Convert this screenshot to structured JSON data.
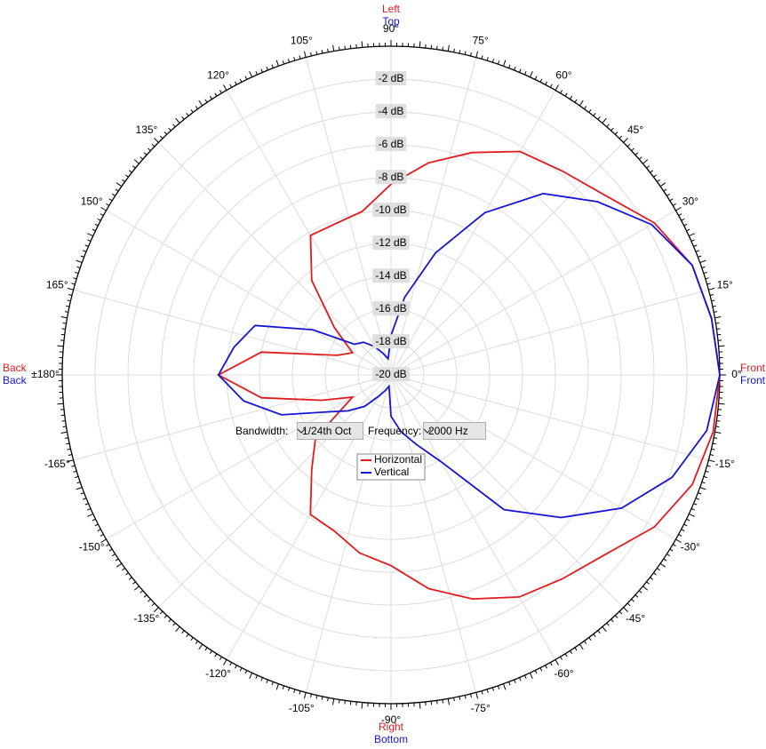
{
  "chart_data": {
    "type": "polar",
    "theta": [
      0,
      10,
      20,
      30,
      40,
      50,
      60,
      70,
      80,
      90,
      100,
      110,
      120,
      130,
      140,
      150,
      160,
      170,
      180,
      190,
      200,
      210,
      220,
      230,
      240,
      250,
      260,
      270,
      280,
      290,
      300,
      310,
      320,
      330,
      340,
      350
    ],
    "series": [
      {
        "name": "Horizontal",
        "color": "#e31a1c",
        "values": [
          0,
          -0.2,
          -0.5,
          -1.5,
          -3.0,
          -3.8,
          -4.3,
          -5.6,
          -6.9,
          -8.4,
          -9.9,
          -10.2,
          -10.2,
          -12.5,
          -15.5,
          -17.3,
          -16.5,
          -12,
          -9.5,
          -12,
          -15.5,
          -17.3,
          -14,
          -12.5,
          -10.2,
          -9.9,
          -9.0,
          -8.4,
          -6.8,
          -5.5,
          -4.4,
          -3.8,
          -3.0,
          -1.5,
          -0.5,
          -0.1
        ]
      },
      {
        "name": "Vertical",
        "color": "#1515d8",
        "values": [
          0,
          -0.2,
          -0.5,
          -1.7,
          -3.6,
          -5.6,
          -8.6,
          -12.1,
          -15.2,
          -17.6,
          -19,
          -18.6,
          -18,
          -17.4,
          -17.1,
          -14.5,
          -11.2,
          -10.3,
          -9.5,
          -10.9,
          -12.9,
          -15.5,
          -16.6,
          -17.5,
          -18.5,
          -19,
          -19.3,
          -17.5,
          -16.5,
          -15.5,
          -13.9,
          -9.3,
          -6.5,
          -3.8,
          -1.8,
          -0.5
        ]
      }
    ],
    "rlim": [
      -20,
      0
    ],
    "rticks": [
      {
        "value": -2,
        "label": "-2 dB"
      },
      {
        "value": -4,
        "label": "-4 dB"
      },
      {
        "value": -6,
        "label": "-6 dB"
      },
      {
        "value": -8,
        "label": "-8 dB"
      },
      {
        "value": -10,
        "label": "-10 dB"
      },
      {
        "value": -12,
        "label": "-12 dB"
      },
      {
        "value": -14,
        "label": "-14 dB"
      },
      {
        "value": -16,
        "label": "-16 dB"
      },
      {
        "value": -18,
        "label": "-18 dB"
      },
      {
        "value": -20,
        "label": "-20 dB"
      }
    ],
    "thetaticks": [
      {
        "value": 0,
        "label": "0°"
      },
      {
        "value": 15,
        "label": "15°"
      },
      {
        "value": 30,
        "label": "30°"
      },
      {
        "value": 45,
        "label": "45°"
      },
      {
        "value": 60,
        "label": "60°"
      },
      {
        "value": 75,
        "label": "75°"
      },
      {
        "value": 90,
        "label": "90°"
      },
      {
        "value": 105,
        "label": "105°"
      },
      {
        "value": 120,
        "label": "120°"
      },
      {
        "value": 135,
        "label": "135°"
      },
      {
        "value": 150,
        "label": "150°"
      },
      {
        "value": 165,
        "label": "165°"
      },
      {
        "value": 180,
        "label": "±180°"
      },
      {
        "value": -165,
        "label": "-165°"
      },
      {
        "value": -150,
        "label": "-150°"
      },
      {
        "value": -135,
        "label": "-135°"
      },
      {
        "value": -120,
        "label": "-120°"
      },
      {
        "value": -105,
        "label": "-105°"
      },
      {
        "value": -90,
        "label": "-90°"
      },
      {
        "value": -75,
        "label": "-75°"
      },
      {
        "value": -60,
        "label": "-60°"
      },
      {
        "value": -45,
        "label": "-45°"
      },
      {
        "value": -30,
        "label": "-30°"
      },
      {
        "value": -15,
        "label": "-15°"
      }
    ],
    "grid": true,
    "side_labels": {
      "top": [
        "Left",
        "Top"
      ],
      "right": [
        "Front",
        "Front"
      ],
      "left": [
        "Back",
        "Back"
      ],
      "bottom": [
        "Right",
        "Bottom"
      ]
    }
  },
  "controls": {
    "bandwidth_label": "Bandwidth:",
    "bandwidth": "1/24th Oct",
    "frequency_label": "Frequency:",
    "frequency": "2000 Hz"
  }
}
